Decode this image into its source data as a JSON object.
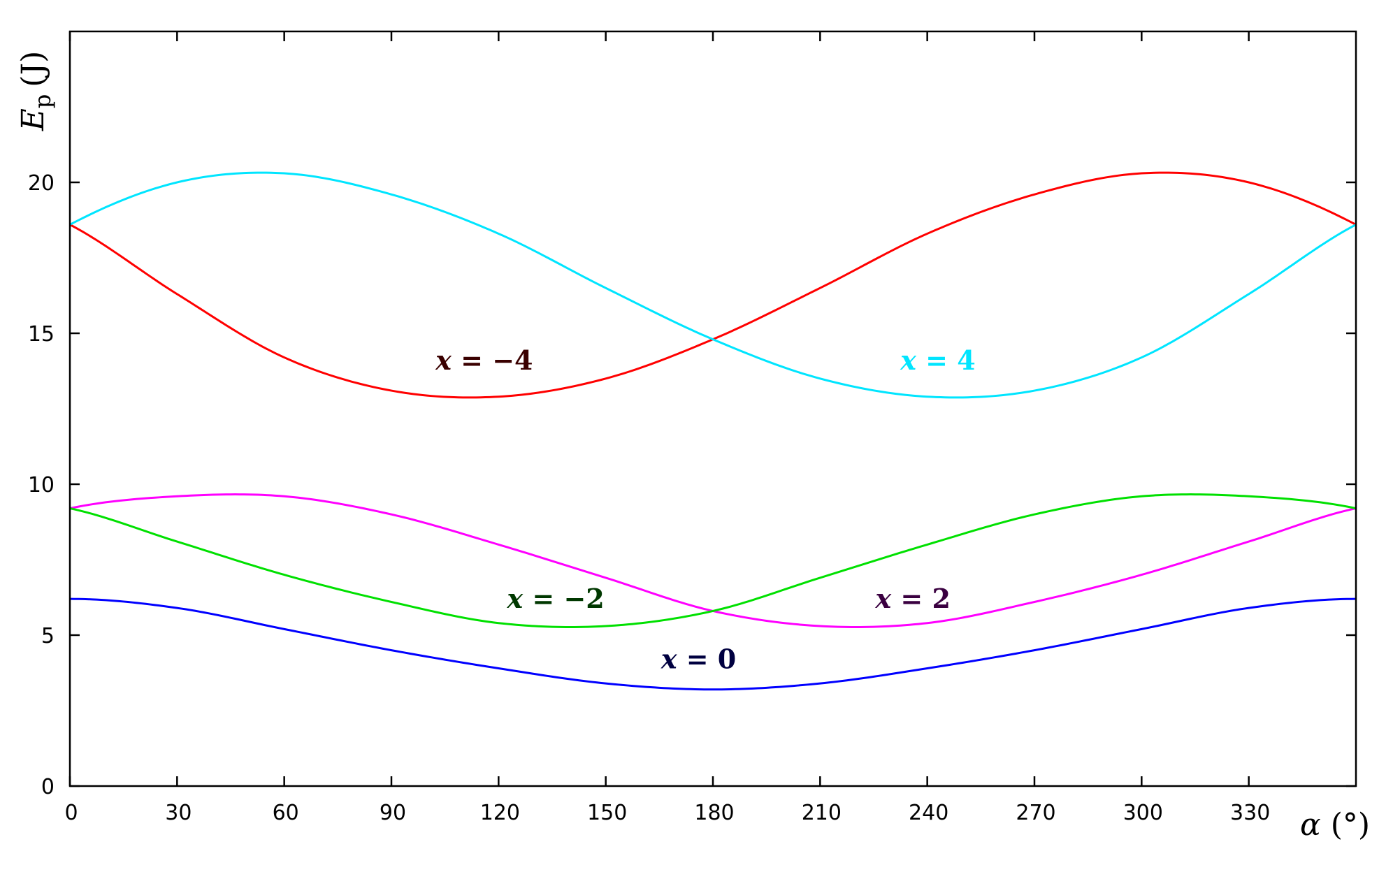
{
  "chart_data": {
    "type": "line",
    "xlabel": {
      "symbol": "α",
      "unit": "(°)"
    },
    "ylabel": {
      "symbol": "E",
      "subscript": "p",
      "unit": "(J)"
    },
    "xlim": [
      0,
      360
    ],
    "ylim": [
      0,
      25
    ],
    "xticks": [
      0,
      30,
      60,
      90,
      120,
      150,
      180,
      210,
      240,
      270,
      300,
      330
    ],
    "yticks": [
      0,
      5,
      10,
      15,
      20
    ],
    "grid": false,
    "x": [
      0,
      30,
      60,
      90,
      120,
      150,
      180,
      210,
      240,
      270,
      300,
      330,
      360
    ],
    "series": [
      {
        "name": "x = −4",
        "label_var": "x",
        "label_rest": " = −4",
        "color": "#ff0000",
        "label_color": "#3a0000",
        "label_at": [
          116,
          13.8
        ],
        "values": [
          18.6,
          16.3,
          14.2,
          13.1,
          12.9,
          13.5,
          14.8,
          16.5,
          18.3,
          19.6,
          20.3,
          20.0,
          18.6
        ]
      },
      {
        "name": "x = 4",
        "label_var": "x",
        "label_rest": " = 4",
        "color": "#00e5ff",
        "label_color": "#00e5ff",
        "label_at": [
          243,
          13.8
        ],
        "values": [
          18.6,
          20.0,
          20.3,
          19.6,
          18.3,
          16.5,
          14.8,
          13.5,
          12.9,
          13.1,
          14.2,
          16.3,
          18.6
        ]
      },
      {
        "name": "x = 2",
        "label_var": "x",
        "label_rest": " = 2",
        "color": "#ff00ff",
        "label_color": "#3a0040",
        "label_at": [
          236,
          5.9
        ],
        "values": [
          9.2,
          9.6,
          9.6,
          9.0,
          8.0,
          6.9,
          5.8,
          5.3,
          5.4,
          6.1,
          7.0,
          8.1,
          9.2
        ]
      },
      {
        "name": "x = −2",
        "label_var": "x",
        "label_rest": " = −2",
        "color": "#00e000",
        "label_color": "#003800",
        "label_at": [
          136,
          5.9
        ],
        "values": [
          9.2,
          8.1,
          7.0,
          6.1,
          5.4,
          5.3,
          5.8,
          6.9,
          8.0,
          9.0,
          9.6,
          9.6,
          9.2
        ]
      },
      {
        "name": "x = 0",
        "label_var": "x",
        "label_rest": " = 0",
        "color": "#0000ff",
        "label_color": "#000040",
        "label_at": [
          176,
          3.9
        ],
        "values": [
          6.2,
          5.9,
          5.2,
          4.5,
          3.9,
          3.4,
          3.2,
          3.4,
          3.9,
          4.5,
          5.2,
          5.9,
          6.2
        ]
      }
    ]
  }
}
